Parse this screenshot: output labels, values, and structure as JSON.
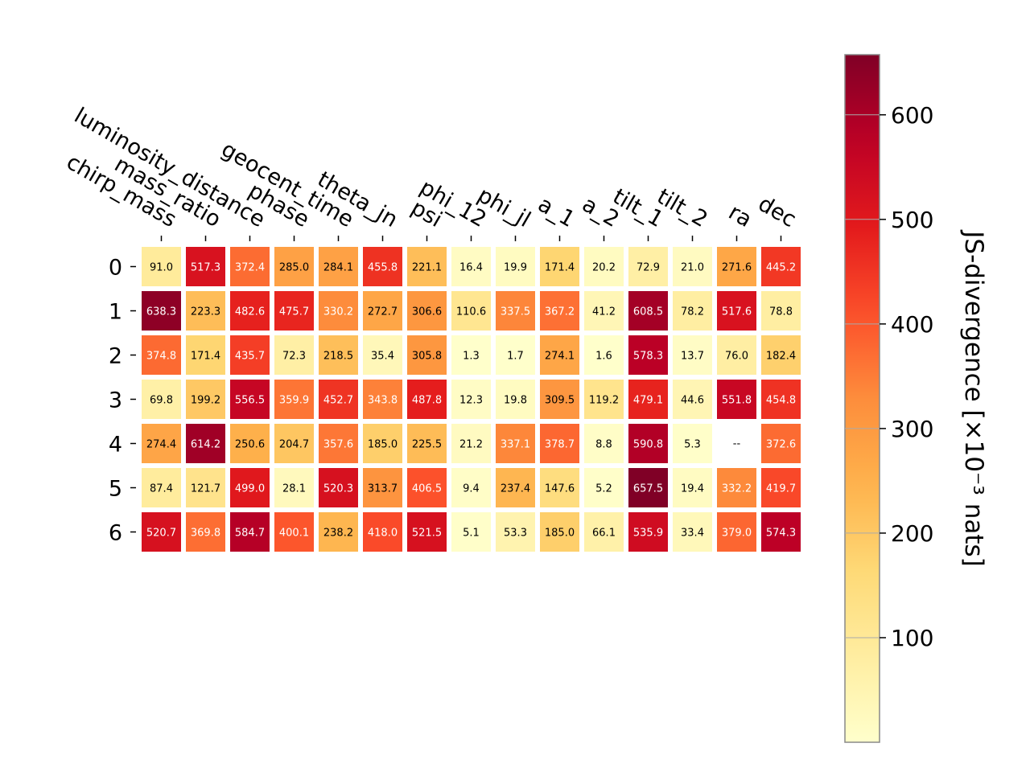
{
  "chart_data": {
    "type": "heatmap",
    "columns": [
      "chirp_mass",
      "mass_ratio",
      "luminosity_distance",
      "phase",
      "geocent_time",
      "theta_jn",
      "psi",
      "phi_12",
      "phi_jl",
      "a_1",
      "a_2",
      "tilt_1",
      "tilt_2",
      "ra",
      "dec"
    ],
    "rows": [
      "0",
      "1",
      "2",
      "3",
      "4",
      "5",
      "6"
    ],
    "values": [
      [
        91.0,
        517.3,
        372.4,
        285.0,
        284.1,
        455.8,
        221.1,
        16.4,
        19.9,
        171.4,
        20.2,
        72.9,
        21.0,
        271.6,
        445.2
      ],
      [
        638.3,
        223.3,
        482.6,
        475.7,
        330.2,
        272.7,
        306.6,
        110.6,
        337.5,
        367.2,
        41.2,
        608.5,
        78.2,
        517.6,
        78.8
      ],
      [
        374.8,
        171.4,
        435.7,
        72.3,
        218.5,
        35.4,
        305.8,
        1.3,
        1.7,
        274.1,
        1.6,
        578.3,
        13.7,
        76.0,
        182.4
      ],
      [
        69.8,
        199.2,
        556.5,
        359.9,
        452.7,
        343.8,
        487.8,
        12.3,
        19.8,
        309.5,
        119.2,
        479.1,
        44.6,
        551.8,
        454.8
      ],
      [
        274.4,
        614.2,
        250.6,
        204.7,
        357.6,
        185.0,
        225.5,
        21.2,
        337.1,
        378.7,
        8.8,
        590.8,
        5.3,
        null,
        372.6
      ],
      [
        87.4,
        121.7,
        499.0,
        28.1,
        520.3,
        313.7,
        406.5,
        9.4,
        237.4,
        147.6,
        5.2,
        657.5,
        19.4,
        332.2,
        419.7
      ],
      [
        520.7,
        369.8,
        584.7,
        400.1,
        238.2,
        418.0,
        521.5,
        5.1,
        53.3,
        185.0,
        66.1,
        535.9,
        33.4,
        379.0,
        574.3
      ]
    ],
    "missing_label": "--",
    "colormap": "YlOrRd",
    "color_range": [
      0,
      657.5
    ],
    "colorbar": {
      "label": "JS-divergence [×10⁻³ nats]",
      "ticks": [
        100,
        200,
        300,
        400,
        500,
        600
      ]
    }
  }
}
